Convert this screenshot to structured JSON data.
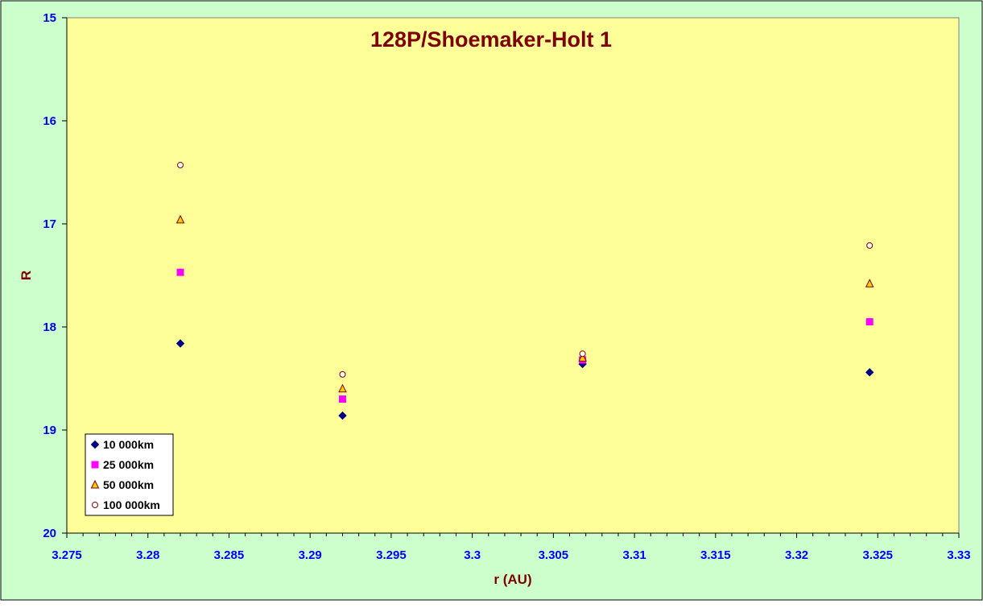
{
  "chart_data": {
    "type": "scatter",
    "title": "128P/Shoemaker-Holt 1",
    "xlabel": "r (AU)",
    "ylabel": "R",
    "xlim": [
      3.275,
      3.33
    ],
    "ylim": [
      15,
      20
    ],
    "y_reversed": true,
    "x_ticks": [
      "3.275",
      "3.28",
      "3.285",
      "3.29",
      "3.295",
      "3.3",
      "3.305",
      "3.31",
      "3.315",
      "3.32",
      "3.325",
      "3.33"
    ],
    "y_ticks": [
      "15",
      "16",
      "17",
      "18",
      "19",
      "20"
    ],
    "grid": false,
    "legend_position": "bottom-left",
    "colors": {
      "outer_background": "#ccffcc",
      "plot_background": "#ffff99",
      "title": "#800000",
      "axis_label": "#800000",
      "tick_label": "#0000ff"
    },
    "series": [
      {
        "name": "10 000km",
        "marker": "diamond",
        "color": "#000080",
        "x": [
          3.282,
          3.292,
          3.3068,
          3.3245
        ],
        "y": [
          18.16,
          18.86,
          18.36,
          18.44
        ]
      },
      {
        "name": "25 000km",
        "marker": "square",
        "color": "#ff00ff",
        "x": [
          3.282,
          3.292,
          3.3068,
          3.3245
        ],
        "y": [
          17.47,
          18.7,
          18.32,
          17.95
        ]
      },
      {
        "name": "50 000km",
        "marker": "triangle",
        "color": "#ffcc00",
        "x": [
          3.282,
          3.292,
          3.3068,
          3.3245
        ],
        "y": [
          16.96,
          18.6,
          18.3,
          17.58
        ]
      },
      {
        "name": "100 000km",
        "marker": "circle",
        "color": "#ffffff",
        "x": [
          3.282,
          3.292,
          3.3068,
          3.3245
        ],
        "y": [
          16.43,
          18.46,
          18.26,
          17.21
        ]
      }
    ]
  }
}
